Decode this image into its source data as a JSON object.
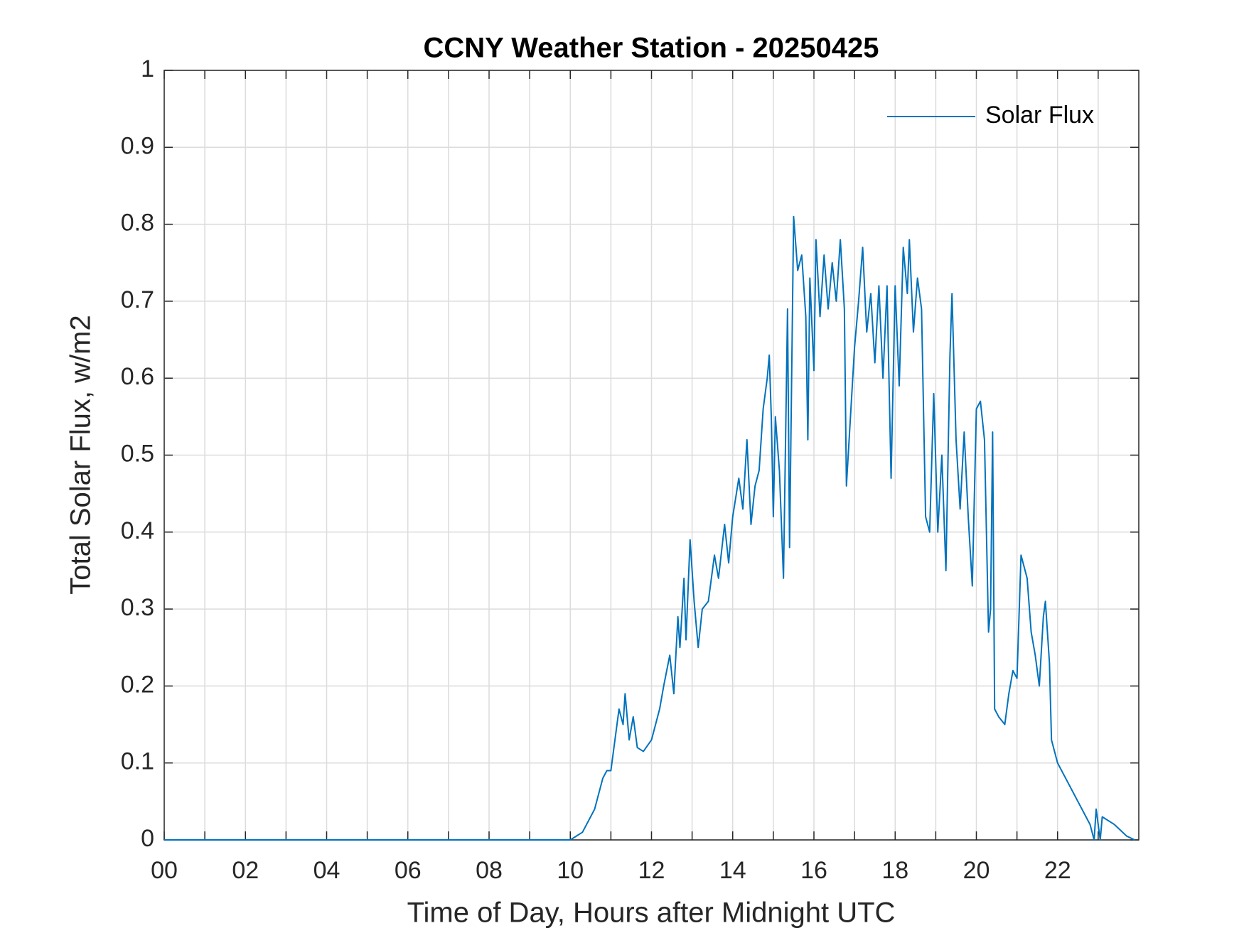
{
  "chart_data": {
    "type": "line",
    "title": "CCNY Weather Station - 20250425",
    "x_label": "Time of Day, Hours after Midnight UTC",
    "y_label": "Total Solar Flux, w/m2",
    "xlim": [
      0,
      24
    ],
    "ylim": [
      0,
      1
    ],
    "xticks": [
      {
        "value": 0,
        "label": "00"
      },
      {
        "value": 2,
        "label": "02"
      },
      {
        "value": 4,
        "label": "04"
      },
      {
        "value": 6,
        "label": "06"
      },
      {
        "value": 8,
        "label": "08"
      },
      {
        "value": 10,
        "label": "10"
      },
      {
        "value": 12,
        "label": "12"
      },
      {
        "value": 14,
        "label": "14"
      },
      {
        "value": 16,
        "label": "16"
      },
      {
        "value": 18,
        "label": "18"
      },
      {
        "value": 20,
        "label": "20"
      },
      {
        "value": 22,
        "label": "22"
      }
    ],
    "x_minor_ticks": [
      1,
      3,
      5,
      7,
      9,
      11,
      13,
      15,
      17,
      19,
      21,
      23
    ],
    "yticks": [
      0,
      0.1,
      0.2,
      0.3,
      0.4,
      0.5,
      0.6,
      0.7,
      0.8,
      0.9,
      1
    ],
    "grid": true,
    "legend": "upper right",
    "series": [
      {
        "name": "Solar Flux",
        "color": "#0072bd",
        "x": [
          0,
          10.0,
          10.3,
          10.6,
          10.8,
          10.9,
          11.0,
          11.2,
          11.3,
          11.35,
          11.45,
          11.55,
          11.65,
          11.8,
          12.0,
          12.2,
          12.3,
          12.45,
          12.55,
          12.65,
          12.7,
          12.8,
          12.85,
          12.95,
          13.05,
          13.15,
          13.25,
          13.4,
          13.55,
          13.65,
          13.8,
          13.9,
          14.0,
          14.15,
          14.25,
          14.35,
          14.45,
          14.55,
          14.65,
          14.75,
          14.85,
          14.9,
          14.95,
          15.0,
          15.05,
          15.15,
          15.25,
          15.35,
          15.4,
          15.5,
          15.6,
          15.7,
          15.8,
          15.85,
          15.9,
          16.0,
          16.05,
          16.15,
          16.25,
          16.35,
          16.45,
          16.55,
          16.65,
          16.75,
          16.8,
          16.9,
          17.0,
          17.1,
          17.2,
          17.3,
          17.4,
          17.5,
          17.6,
          17.7,
          17.8,
          17.9,
          18.0,
          18.1,
          18.2,
          18.3,
          18.35,
          18.45,
          18.55,
          18.65,
          18.75,
          18.85,
          18.95,
          19.05,
          19.15,
          19.25,
          19.35,
          19.4,
          19.5,
          19.6,
          19.7,
          19.8,
          19.9,
          20.0,
          20.1,
          20.2,
          20.3,
          20.35,
          20.4,
          20.45,
          20.55,
          20.7,
          20.8,
          20.9,
          21.0,
          21.1,
          21.25,
          21.35,
          21.45,
          21.55,
          21.65,
          21.7,
          21.8,
          21.85,
          22.0,
          22.3,
          22.6,
          22.8,
          22.9,
          22.95,
          23.05,
          23.1,
          23.4,
          23.7,
          23.9
        ],
        "values": [
          0,
          0,
          0.01,
          0.04,
          0.08,
          0.09,
          0.09,
          0.17,
          0.15,
          0.19,
          0.13,
          0.16,
          0.12,
          0.115,
          0.13,
          0.17,
          0.2,
          0.24,
          0.19,
          0.29,
          0.25,
          0.34,
          0.26,
          0.39,
          0.31,
          0.25,
          0.3,
          0.31,
          0.37,
          0.34,
          0.41,
          0.36,
          0.42,
          0.47,
          0.43,
          0.52,
          0.41,
          0.46,
          0.48,
          0.56,
          0.6,
          0.63,
          0.55,
          0.42,
          0.55,
          0.48,
          0.34,
          0.69,
          0.38,
          0.81,
          0.74,
          0.76,
          0.68,
          0.52,
          0.73,
          0.61,
          0.78,
          0.68,
          0.76,
          0.69,
          0.75,
          0.7,
          0.78,
          0.69,
          0.46,
          0.55,
          0.64,
          0.7,
          0.77,
          0.66,
          0.71,
          0.62,
          0.72,
          0.6,
          0.72,
          0.47,
          0.72,
          0.59,
          0.77,
          0.71,
          0.78,
          0.66,
          0.73,
          0.69,
          0.42,
          0.4,
          0.58,
          0.4,
          0.5,
          0.35,
          0.63,
          0.71,
          0.52,
          0.43,
          0.53,
          0.42,
          0.33,
          0.56,
          0.57,
          0.52,
          0.27,
          0.3,
          0.53,
          0.17,
          0.16,
          0.15,
          0.19,
          0.22,
          0.21,
          0.37,
          0.34,
          0.27,
          0.24,
          0.2,
          0.29,
          0.31,
          0.23,
          0.13,
          0.1,
          0.07,
          0.04,
          0.02,
          0,
          0.04,
          0,
          0.03,
          0.02,
          0.005,
          0
        ]
      }
    ]
  }
}
